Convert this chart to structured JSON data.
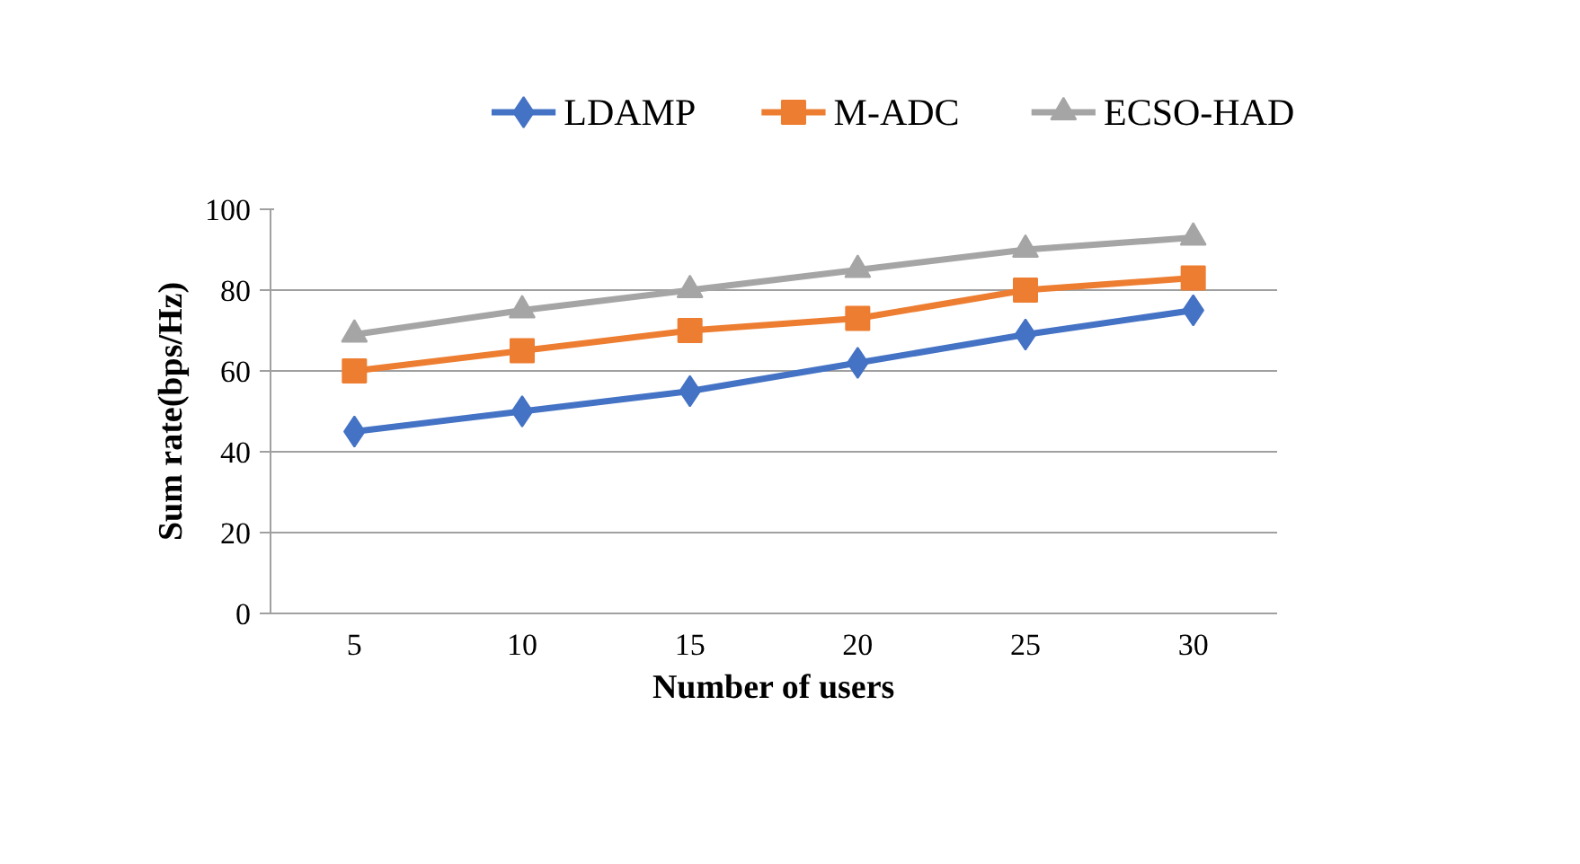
{
  "chart_data": {
    "type": "line",
    "xlabel": "Number of users",
    "ylabel": "Sum rate(bps/Hz)",
    "categories": [
      "5",
      "10",
      "15",
      "20",
      "25",
      "30"
    ],
    "series": [
      {
        "name": "LDAMP",
        "color": "#4472c4",
        "marker": "diamond",
        "values": [
          45,
          50,
          55,
          62,
          69,
          75
        ]
      },
      {
        "name": "M-ADC",
        "color": "#ed7d31",
        "marker": "square",
        "values": [
          60,
          65,
          70,
          73,
          80,
          83
        ]
      },
      {
        "name": "ECSO-HAD",
        "color": "#a5a5a5",
        "marker": "triangle",
        "values": [
          69,
          75,
          80,
          85,
          90,
          93
        ]
      }
    ],
    "ylim": [
      0,
      100
    ],
    "yticks": [
      0,
      20,
      40,
      60,
      80,
      100
    ],
    "grid": "y",
    "legend": "top",
    "line_style": "solid"
  }
}
